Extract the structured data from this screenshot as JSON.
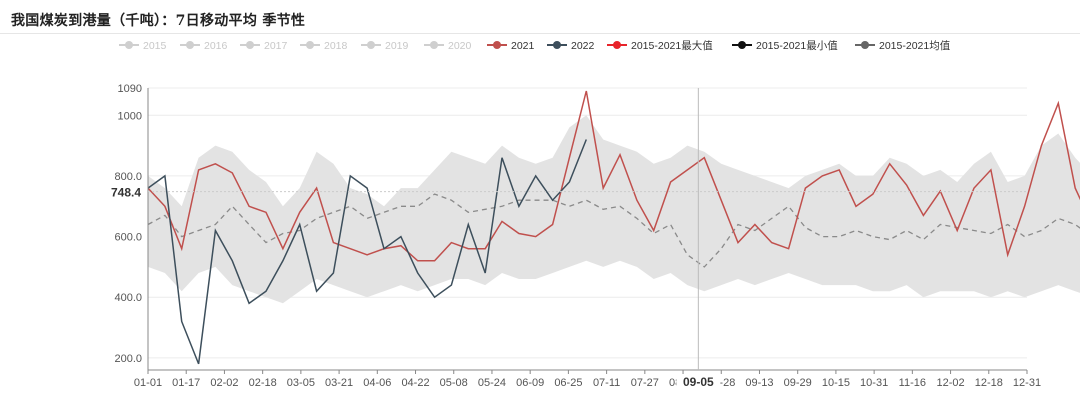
{
  "title": "我国煤炭到港量（千吨）：7日移动平均 季节性",
  "chart_data": {
    "type": "line",
    "x_ticks": [
      "01-01",
      "01-17",
      "02-02",
      "02-18",
      "03-05",
      "03-21",
      "04-06",
      "04-22",
      "05-08",
      "05-24",
      "06-09",
      "06-25",
      "07-11",
      "07-27",
      "08-12",
      "08-28",
      "09-13",
      "09-29",
      "10-15",
      "10-31",
      "11-16",
      "12-02",
      "12-18",
      "12-31"
    ],
    "hover_x_label": "09-05",
    "y_ticks": [
      "200.0",
      "400.0",
      "600.0",
      "800.0",
      "1000",
      "1090"
    ],
    "ylim": [
      160,
      1090
    ],
    "hover_y_label": "748.4",
    "legend": [
      {
        "name": "2015",
        "color": "#cfcfcf",
        "enabled": false
      },
      {
        "name": "2016",
        "color": "#cfcfcf",
        "enabled": false
      },
      {
        "name": "2017",
        "color": "#cfcfcf",
        "enabled": false
      },
      {
        "name": "2018",
        "color": "#cfcfcf",
        "enabled": false
      },
      {
        "name": "2019",
        "color": "#cfcfcf",
        "enabled": false
      },
      {
        "name": "2020",
        "color": "#cfcfcf",
        "enabled": false
      },
      {
        "name": "2021",
        "color": "#c0504d",
        "enabled": true
      },
      {
        "name": "2022",
        "color": "#3d4f5c",
        "enabled": true
      },
      {
        "name": "2015-2021最大值",
        "color": "#e8242b",
        "enabled": true
      },
      {
        "name": "2015-2021最小值",
        "color": "#111111",
        "enabled": true
      },
      {
        "name": "2015-2021均值",
        "color": "#666666",
        "enabled": true
      }
    ],
    "series": [
      {
        "name": "2021",
        "color": "#c0504d",
        "day_step": 7,
        "values": [
          760,
          700,
          560,
          820,
          840,
          810,
          700,
          680,
          560,
          680,
          760,
          580,
          560,
          540,
          560,
          570,
          520,
          520,
          580,
          560,
          560,
          650,
          610,
          600,
          640,
          860,
          1080,
          760,
          870,
          720,
          620,
          780,
          820,
          860,
          720,
          580,
          640,
          580,
          560,
          760,
          800,
          820,
          700,
          740,
          840,
          770,
          670,
          750,
          620,
          760,
          820,
          540,
          700,
          900,
          1040,
          760,
          640,
          700,
          840,
          700,
          800,
          730,
          720
        ]
      },
      {
        "name": "2022",
        "color": "#3d4f5c",
        "day_step": 7,
        "values": [
          760,
          800,
          320,
          180,
          620,
          520,
          380,
          420,
          520,
          640,
          420,
          480,
          800,
          760,
          560,
          600,
          480,
          400,
          440,
          640,
          480,
          860,
          700,
          800,
          720,
          780,
          920
        ]
      },
      {
        "name": "2015-2021均值",
        "color": "#8a8a8a",
        "day_step": 7,
        "values": [
          640,
          670,
          600,
          620,
          640,
          700,
          640,
          580,
          610,
          620,
          660,
          680,
          700,
          660,
          680,
          700,
          700,
          740,
          720,
          680,
          690,
          700,
          720,
          720,
          720,
          700,
          720,
          690,
          700,
          660,
          610,
          640,
          540,
          500,
          560,
          640,
          620,
          660,
          700,
          630,
          600,
          600,
          620,
          600,
          590,
          620,
          590,
          640,
          630,
          620,
          610,
          640,
          600,
          620,
          660,
          640,
          600,
          660,
          560,
          640,
          620,
          600,
          620
        ]
      },
      {
        "name": "band_upper",
        "color": "#e6e6e6",
        "day_step": 7,
        "values": [
          800,
          760,
          700,
          860,
          900,
          880,
          820,
          780,
          700,
          760,
          880,
          840,
          760,
          740,
          700,
          760,
          760,
          820,
          880,
          860,
          840,
          900,
          860,
          840,
          860,
          960,
          1000,
          920,
          900,
          880,
          840,
          860,
          900,
          880,
          840,
          820,
          800,
          780,
          760,
          800,
          820,
          840,
          800,
          800,
          860,
          840,
          800,
          820,
          780,
          840,
          880,
          780,
          800,
          900,
          940,
          860,
          800,
          820,
          860,
          840,
          820,
          780,
          800
        ]
      },
      {
        "name": "band_lower",
        "color": "#e6e6e6",
        "day_step": 7,
        "values": [
          500,
          480,
          420,
          480,
          500,
          440,
          420,
          400,
          380,
          420,
          460,
          440,
          420,
          400,
          420,
          440,
          420,
          440,
          460,
          460,
          440,
          480,
          460,
          460,
          480,
          500,
          520,
          500,
          520,
          500,
          460,
          480,
          440,
          420,
          440,
          460,
          440,
          460,
          480,
          460,
          440,
          440,
          440,
          420,
          420,
          440,
          400,
          420,
          420,
          420,
          400,
          420,
          400,
          420,
          440,
          420,
          400,
          420,
          400,
          420,
          420,
          400,
          420
        ]
      }
    ]
  }
}
